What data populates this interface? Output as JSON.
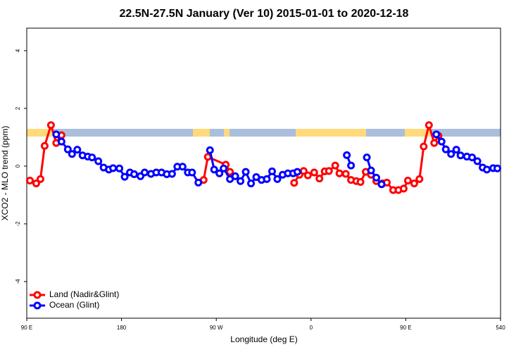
{
  "chart_data": {
    "type": "line",
    "title": "22.5N-27.5N January (Ver 10)   2015-01-01 to 2020-12-18",
    "x_label": "Longitude (deg E)",
    "y_label": "XCO2 - MLO trend (ppm)",
    "xlim": [
      90,
      540
    ],
    "ylim": [
      -5.27,
      4.78
    ],
    "xticks": [
      {
        "value": 90,
        "label": "90 E"
      },
      180,
      {
        "value": 270,
        "label": "90 W"
      },
      {
        "value": 360,
        "label": "0"
      },
      {
        "value": 450,
        "label": "90 E"
      },
      540
    ],
    "yticks": [
      -4,
      -2,
      0,
      2,
      4
    ],
    "legend": "bottomleft",
    "series": [
      {
        "name": "Land (Nadir&Glint)",
        "color": "#ff0000",
        "x": [
          93,
          99,
          103,
          107,
          113,
          118,
          123,
          null,
          258,
          262,
          279,
          283,
          null,
          344,
          349,
          353,
          357,
          363,
          368,
          373,
          377,
          383,
          387,
          393,
          398,
          403,
          407,
          412,
          417,
          422,
          428,
          432,
          438,
          443,
          448,
          452,
          458,
          463,
          467,
          472,
          477,
          481
        ],
        "values": [
          -0.5,
          -0.6,
          -0.45,
          0.7,
          1.42,
          0.8,
          1.07,
          null,
          -0.48,
          0.32,
          0.05,
          -0.2,
          null,
          -0.58,
          -0.3,
          -0.17,
          -0.32,
          -0.22,
          -0.43,
          -0.18,
          -0.17,
          0.02,
          -0.25,
          -0.27,
          -0.48,
          -0.52,
          -0.55,
          -0.2,
          -0.3,
          -0.52,
          -0.6,
          -0.57,
          -0.83,
          -0.83,
          -0.78,
          -0.5,
          -0.6,
          -0.45,
          0.68,
          1.42,
          0.8,
          1.05
        ]
      },
      {
        "name": "Ocean (Glint)",
        "color": "#0000ff",
        "x": [
          118,
          123,
          129,
          133,
          138,
          143,
          148,
          152,
          158,
          163,
          168,
          172,
          178,
          183,
          188,
          192,
          198,
          202,
          208,
          213,
          218,
          223,
          228,
          233,
          238,
          243,
          247,
          253,
          null,
          264,
          268,
          273,
          277,
          283,
          288,
          293,
          298,
          303,
          308,
          313,
          318,
          323,
          328,
          333,
          338,
          343,
          347,
          null,
          394,
          398,
          null,
          413,
          417,
          422,
          427,
          null,
          479,
          484,
          488,
          493,
          498,
          502,
          508,
          513,
          518,
          523,
          527,
          533,
          537
        ],
        "values": [
          1.1,
          0.85,
          0.58,
          0.42,
          0.57,
          0.37,
          0.33,
          0.3,
          0.17,
          -0.05,
          -0.12,
          -0.07,
          -0.08,
          -0.37,
          -0.22,
          -0.28,
          -0.35,
          -0.22,
          -0.27,
          -0.22,
          -0.22,
          -0.28,
          -0.27,
          -0.02,
          -0.02,
          -0.22,
          -0.22,
          -0.57,
          null,
          0.55,
          -0.12,
          -0.25,
          -0.08,
          -0.45,
          -0.35,
          -0.52,
          -0.2,
          -0.6,
          -0.38,
          -0.48,
          -0.45,
          -0.18,
          -0.45,
          -0.3,
          -0.25,
          -0.25,
          -0.2,
          null,
          0.38,
          0.02,
          null,
          0.3,
          -0.15,
          -0.4,
          -0.63,
          null,
          1.1,
          0.85,
          0.58,
          0.42,
          0.57,
          0.37,
          0.33,
          0.3,
          0.17,
          -0.05,
          -0.12,
          -0.07,
          -0.08
        ]
      }
    ]
  }
}
